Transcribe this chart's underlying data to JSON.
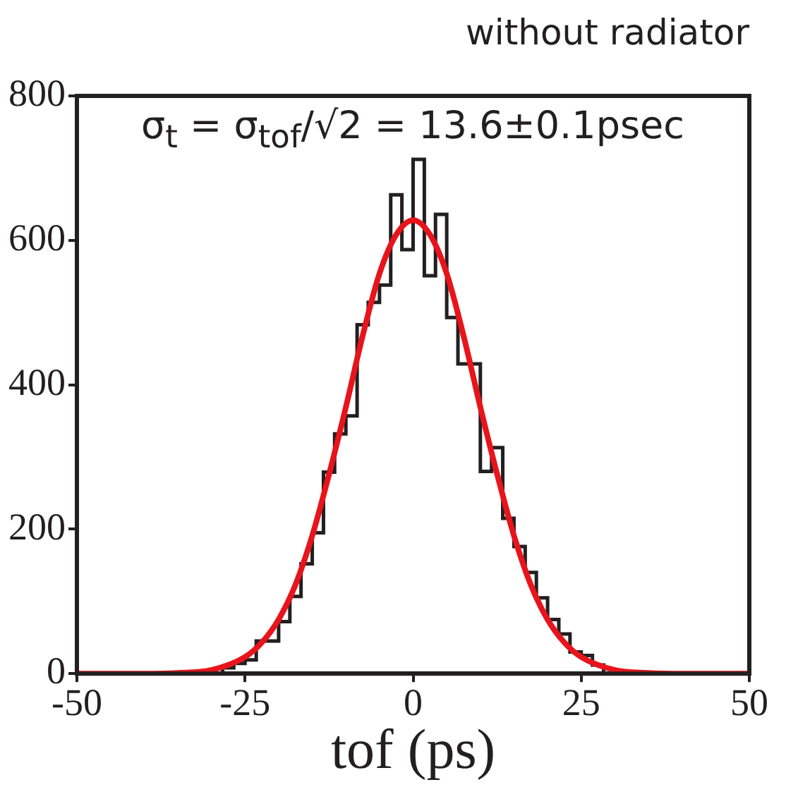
{
  "chart_data": {
    "type": "histogram",
    "title": "without radiator",
    "xlabel": "tof (ps)",
    "annotations": [
      "σ$_{t}$ = σ$_{tof}$/√2 = 13.6±0.1psec"
    ],
    "xlim": [
      -50,
      50
    ],
    "xticks": [
      -50,
      -25,
      0,
      25,
      50
    ],
    "ylim": [
      0,
      800
    ],
    "yticks": [
      0,
      200,
      400,
      600,
      800
    ],
    "grid": false,
    "legend": false,
    "series": [
      {
        "type": "histogram",
        "color": "#231f20",
        "bins": [
          -50,
          -48.33,
          -46.67,
          -45,
          -43.33,
          -41.67,
          -40,
          -38.33,
          -36.67,
          -35,
          -33.33,
          -31.67,
          -30,
          -28.33,
          -26.67,
          -25,
          -23.33,
          -21.67,
          -20,
          -18.33,
          -16.67,
          -15,
          -13.33,
          -11.67,
          -10,
          -8.33,
          -6.67,
          -5,
          -3.33,
          -1.67,
          0,
          1.67,
          3.33,
          5,
          6.67,
          8.33,
          10,
          11.67,
          13.33,
          15,
          16.67,
          18.33,
          20,
          21.67,
          23.33,
          25,
          26.67,
          28.33,
          30,
          31.67,
          33.33,
          35,
          36.67,
          38.33,
          40,
          41.67,
          43.33,
          45,
          46.67,
          48.33,
          50
        ],
        "values": [
          0,
          0,
          0,
          0,
          0,
          0,
          0,
          0,
          0,
          0,
          0,
          0,
          0,
          8,
          14,
          19,
          45,
          45,
          72,
          107,
          152,
          195,
          279,
          332,
          357,
          483,
          514,
          538,
          663,
          587,
          712,
          551,
          636,
          493,
          429,
          429,
          280,
          313,
          215,
          176,
          140,
          105,
          75,
          55,
          30,
          25,
          12,
          0,
          0,
          0,
          0,
          0,
          0,
          0,
          0,
          0,
          0,
          0,
          0,
          0
        ]
      },
      {
        "type": "line",
        "color": "#e8141c",
        "marker": "none",
        "x": [
          -50,
          -40,
          -35,
          -30,
          -25,
          -22.5,
          -20,
          -17.5,
          -15,
          -12.5,
          -10,
          -7.5,
          -5,
          -2.5,
          0,
          2.5,
          5,
          7.5,
          10,
          12.5,
          15,
          17.5,
          20,
          22.5,
          25,
          30,
          35,
          40,
          50
        ],
        "values": [
          0,
          0,
          1,
          5,
          23,
          43,
          75,
          123,
          191,
          276,
          369,
          468,
          554,
          608,
          628,
          608,
          554,
          468,
          369,
          276,
          191,
          123,
          75,
          43,
          23,
          5,
          1,
          0,
          0
        ]
      }
    ]
  }
}
